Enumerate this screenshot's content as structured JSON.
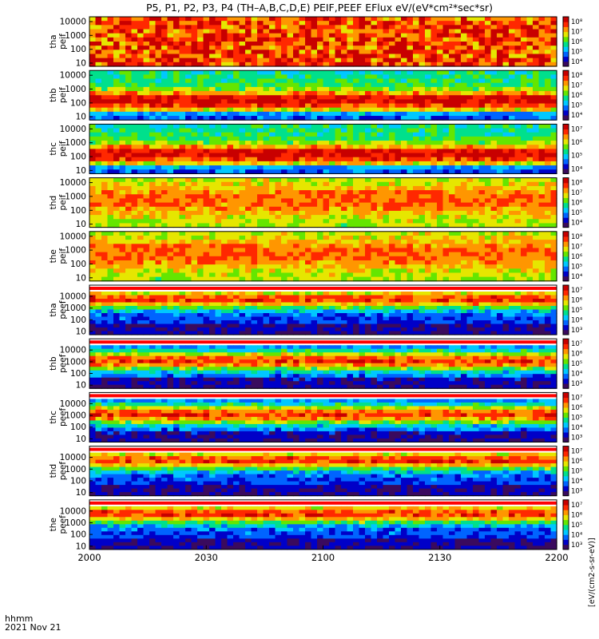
{
  "title": "P5, P1, P2, P3, P4 (TH–A,B,C,D,E) PEIF,PEEF EFlux eV/(eV*cm²*sec*sr)",
  "xaxis": {
    "ticks": [
      "2000",
      "2030",
      "2100",
      "2130",
      "2200"
    ],
    "corner_label_1": "hhmm",
    "corner_label_2": "2021 Nov 21"
  },
  "colorbar_label_template": "[eV/(cm2-s-sr-eV)]",
  "colors": {
    "palette": [
      "#3a0a5e",
      "#0000c8",
      "#0064ff",
      "#00c8ff",
      "#00e08c",
      "#64e600",
      "#e6e600",
      "#ff9600",
      "#ff2800",
      "#c80000"
    ],
    "frame": "#000000",
    "gap_band": "#ff0000"
  },
  "chart_data": {
    "type": "heatmap",
    "x_range": [
      "2000",
      "2200"
    ],
    "y_scale": "log",
    "y_ticks": [
      "10",
      "100",
      "1000",
      "10000"
    ],
    "panels": [
      {
        "name": "tha peif",
        "label_1": "tha",
        "label_2": "peif",
        "species": "ion",
        "cbar_ticks": [
          "10⁴",
          "10⁵",
          "10⁶",
          "10⁷",
          "10⁸"
        ],
        "has_gap_band": false
      },
      {
        "name": "thb peif",
        "label_1": "thb",
        "label_2": "peif",
        "species": "ion",
        "cbar_ticks": [
          "10⁴",
          "10⁵",
          "10⁶",
          "10⁷",
          "10⁸"
        ],
        "has_gap_band": false
      },
      {
        "name": "thc peif",
        "label_1": "thc",
        "label_2": "peif",
        "species": "ion",
        "cbar_ticks": [
          "10⁴",
          "10⁵",
          "10⁶",
          "10⁷"
        ],
        "has_gap_band": false
      },
      {
        "name": "thd peif",
        "label_1": "thd",
        "label_2": "peif",
        "species": "ion",
        "cbar_ticks": [
          "10⁴",
          "10⁵",
          "10⁶",
          "10⁷",
          "10⁸"
        ],
        "has_gap_band": false
      },
      {
        "name": "the peif",
        "label_1": "the",
        "label_2": "peif",
        "species": "ion",
        "cbar_ticks": [
          "10⁴",
          "10⁵",
          "10⁶",
          "10⁷",
          "10⁸"
        ],
        "has_gap_band": false
      },
      {
        "name": "tha peef",
        "label_1": "tha",
        "label_2": "peef",
        "species": "electron",
        "cbar_ticks": [
          "10³",
          "10⁴",
          "10⁵",
          "10⁶",
          "10⁷"
        ],
        "has_gap_band": true
      },
      {
        "name": "thb peef",
        "label_1": "thb",
        "label_2": "peef",
        "species": "electron",
        "cbar_ticks": [
          "10³",
          "10⁴",
          "10⁵",
          "10⁶",
          "10⁷"
        ],
        "has_gap_band": true
      },
      {
        "name": "thc peef",
        "label_1": "thc",
        "label_2": "peef",
        "species": "electron",
        "cbar_ticks": [
          "10³",
          "10⁴",
          "10⁵",
          "10⁶",
          "10⁷"
        ],
        "has_gap_band": true
      },
      {
        "name": "thd peef",
        "label_1": "thd",
        "label_2": "peef",
        "species": "electron",
        "cbar_ticks": [
          "10³",
          "10⁴",
          "10⁵",
          "10⁶",
          "10⁷"
        ],
        "has_gap_band": true
      },
      {
        "name": "the peef",
        "label_1": "the",
        "label_2": "peef",
        "species": "electron",
        "cbar_ticks": [
          "10³",
          "10⁴",
          "10⁵",
          "10⁶",
          "10⁷"
        ],
        "has_gap_band": true
      }
    ]
  }
}
